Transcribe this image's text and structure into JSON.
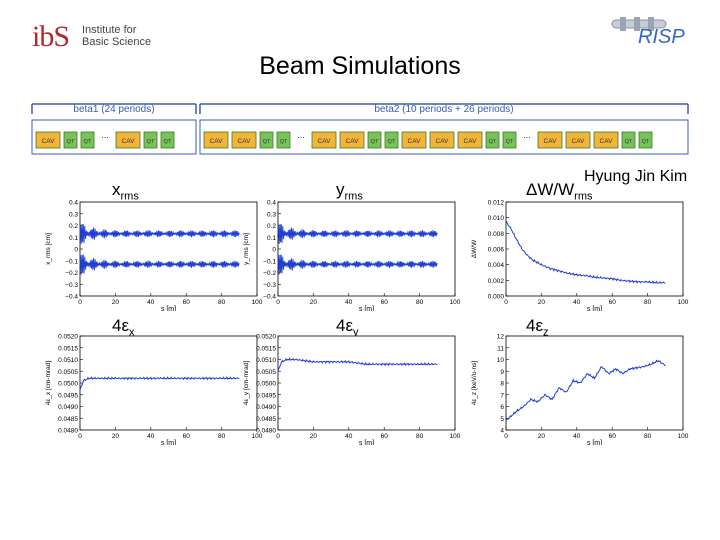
{
  "header": {
    "logo_text": "ibS Institute for Basic Science",
    "risp": "RISP",
    "title": "Beam Simulations",
    "author": "Hyung Jin Kim"
  },
  "lattice": {
    "beta1_label": "beta1 (24 periods)",
    "beta2_label": "beta2 (10 periods + 26 periods)",
    "elements": [
      {
        "t": "CAV",
        "g": 0
      },
      {
        "t": "QT",
        "g": 0
      },
      {
        "t": "QT",
        "g": 0
      },
      {
        "t": "...",
        "g": 0
      },
      {
        "t": "CAV",
        "g": 0
      },
      {
        "t": "QT",
        "g": 0
      },
      {
        "t": "QT",
        "g": 0
      },
      {
        "t": "CAV",
        "g": 1
      },
      {
        "t": "CAV",
        "g": 1
      },
      {
        "t": "QT",
        "g": 1
      },
      {
        "t": "QT",
        "g": 1
      },
      {
        "t": "...",
        "g": 1
      },
      {
        "t": "CAV",
        "g": 1
      },
      {
        "t": "CAV",
        "g": 1
      },
      {
        "t": "QT",
        "g": 1
      },
      {
        "t": "QT",
        "g": 1
      },
      {
        "t": "CAV",
        "g": 1
      },
      {
        "t": "CAV",
        "g": 1
      },
      {
        "t": "CAV",
        "g": 1
      },
      {
        "t": "QT",
        "g": 1
      },
      {
        "t": "QT",
        "g": 1
      },
      {
        "t": "...",
        "g": 1
      },
      {
        "t": "CAV",
        "g": 1
      },
      {
        "t": "CAV",
        "g": 1
      },
      {
        "t": "CAV",
        "g": 1
      },
      {
        "t": "QT",
        "g": 1
      },
      {
        "t": "QT",
        "g": 1
      }
    ],
    "colors": {
      "frame": "#3a5cb0",
      "cav": "#f2b53a",
      "qt": "#78c25a",
      "border": "#3b7a2a"
    }
  },
  "chart_data": [
    {
      "type": "line",
      "label_main": "x",
      "label_sub": "rms",
      "ylabel": "x_rms [cm]",
      "xlabel": "s [m]",
      "xlim": [
        0,
        100
      ],
      "ylim": [
        -0.4,
        0.4
      ],
      "xticks": [
        "0",
        "20",
        "40",
        "60",
        "80",
        "100"
      ],
      "yticks": [
        "0.4",
        "0.3",
        "0.2",
        "0.1",
        "0",
        "−0.1",
        "−0.2",
        "−0.3",
        "−0.4"
      ],
      "series": [
        {
          "kind": "envelope",
          "x_end": 90,
          "values": [
            0.13,
            -0.13
          ],
          "color": "#1f3fd0"
        }
      ]
    },
    {
      "type": "line",
      "label_main": "y",
      "label_sub": "rms",
      "ylabel": "y_rms [cm]",
      "xlabel": "s [m]",
      "xlim": [
        0,
        100
      ],
      "ylim": [
        -0.4,
        0.4
      ],
      "xticks": [
        "0",
        "20",
        "40",
        "60",
        "80",
        "100"
      ],
      "yticks": [
        "0.4",
        "0.3",
        "0.2",
        "0.1",
        "0",
        "−0.1",
        "−0.2",
        "−0.3",
        "−0.4"
      ],
      "series": [
        {
          "kind": "envelope",
          "x_end": 90,
          "values": [
            0.13,
            -0.13
          ],
          "color": "#1f3fd0"
        }
      ]
    },
    {
      "type": "line",
      "label_main": "ΔW/W",
      "label_sub": "rms",
      "ylabel": "ΔW/W",
      "xlabel": "s [m]",
      "xlim": [
        0,
        100
      ],
      "ylim": [
        0,
        0.012
      ],
      "xticks": [
        "0",
        "20",
        "40",
        "60",
        "80",
        "100"
      ],
      "yticks": [
        "0.012",
        "0.010",
        "0.008",
        "0.006",
        "0.004",
        "0.002",
        "0.000"
      ],
      "series": [
        {
          "kind": "line",
          "color": "#1f3fd0",
          "x": [
            0,
            3,
            6,
            9,
            12,
            15,
            20,
            25,
            30,
            35,
            40,
            45,
            50,
            55,
            60,
            65,
            70,
            75,
            80,
            85,
            90
          ],
          "values": [
            0.0095,
            0.0085,
            0.0072,
            0.006,
            0.0052,
            0.0046,
            0.004,
            0.0035,
            0.0032,
            0.0029,
            0.0027,
            0.0026,
            0.0024,
            0.0023,
            0.0022,
            0.002,
            0.0019,
            0.0018,
            0.0018,
            0.0017,
            0.0017
          ]
        }
      ]
    },
    {
      "type": "line",
      "label_main": "4ε",
      "label_sub": "x",
      "ylabel": "4ε_x [cm-mrad]",
      "xlabel": "s [m]",
      "xlim": [
        0,
        100
      ],
      "ylim": [
        0.048,
        0.052
      ],
      "xticks": [
        "0",
        "20",
        "40",
        "60",
        "80",
        "100"
      ],
      "yticks": [
        "0.0520",
        "0.0515",
        "0.0510",
        "0.0505",
        "0.0500",
        "0.0495",
        "0.0490",
        "0.0485",
        "0.0480"
      ],
      "series": [
        {
          "kind": "line",
          "color": "#1f3fd0",
          "x": [
            0,
            2,
            5,
            10,
            20,
            30,
            40,
            50,
            60,
            70,
            80,
            90
          ],
          "values": [
            0.0497,
            0.0501,
            0.0502,
            0.0502,
            0.0502,
            0.0502,
            0.0502,
            0.0502,
            0.0502,
            0.0502,
            0.0502,
            0.0502
          ]
        }
      ]
    },
    {
      "type": "line",
      "label_main": "4ε",
      "label_sub": "y",
      "ylabel": "4ε_y [cm-mrad]",
      "xlabel": "s [m]",
      "xlim": [
        0,
        100
      ],
      "ylim": [
        0.048,
        0.052
      ],
      "xticks": [
        "0",
        "20",
        "40",
        "60",
        "80",
        "100"
      ],
      "yticks": [
        "0.0520",
        "0.0515",
        "0.0510",
        "0.0505",
        "0.0500",
        "0.0495",
        "0.0490",
        "0.0485",
        "0.0480"
      ],
      "series": [
        {
          "kind": "line",
          "color": "#1f3fd0",
          "x": [
            0,
            2,
            5,
            10,
            20,
            30,
            40,
            50,
            60,
            70,
            80,
            90
          ],
          "values": [
            0.0505,
            0.0509,
            0.051,
            0.051,
            0.0509,
            0.0509,
            0.0509,
            0.0508,
            0.0508,
            0.0508,
            0.0508,
            0.0508
          ]
        }
      ]
    },
    {
      "type": "line",
      "label_main": "4ε",
      "label_sub": "z",
      "ylabel": "4ε_z [keV/u-ns]",
      "xlabel": "s [m]",
      "xlim": [
        0,
        100
      ],
      "ylim": [
        4,
        12
      ],
      "xticks": [
        "0",
        "20",
        "40",
        "60",
        "80",
        "100"
      ],
      "yticks": [
        "12",
        "11",
        "10",
        "9",
        "8",
        "7",
        "6",
        "5",
        "4"
      ],
      "series": [
        {
          "kind": "line",
          "color": "#1f3fd0",
          "x": [
            0,
            3,
            6,
            10,
            14,
            18,
            22,
            26,
            30,
            34,
            38,
            42,
            46,
            50,
            54,
            58,
            62,
            66,
            70,
            74,
            78,
            82,
            86,
            90
          ],
          "values": [
            4.8,
            5.2,
            5.6,
            6.0,
            6.6,
            6.4,
            7.0,
            6.6,
            7.6,
            7.2,
            8.2,
            8.0,
            8.8,
            8.4,
            9.4,
            8.8,
            9.2,
            8.8,
            9.2,
            9.3,
            9.4,
            9.6,
            9.9,
            9.5
          ]
        }
      ]
    }
  ]
}
